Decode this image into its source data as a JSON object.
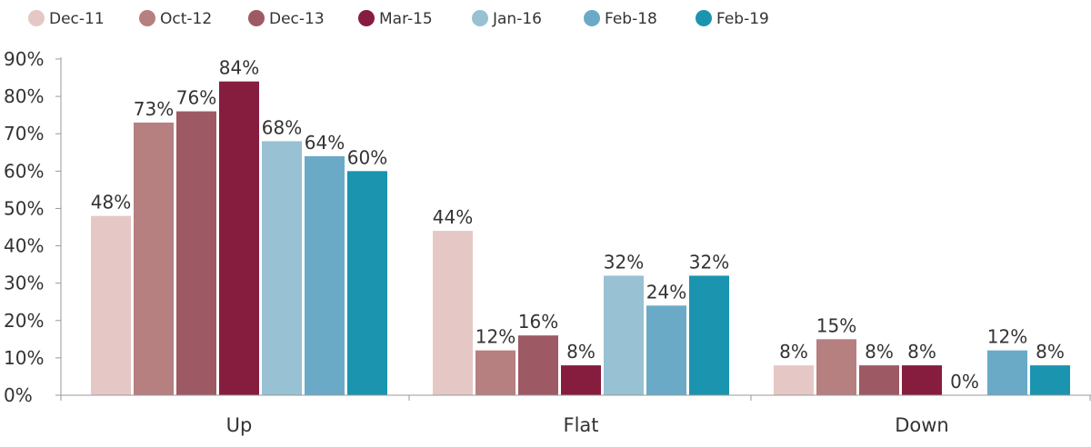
{
  "chart_data": {
    "type": "bar",
    "title": "",
    "xlabel": "",
    "ylabel": "",
    "categories": [
      "Up",
      "Flat",
      "Down"
    ],
    "ylim": [
      0,
      90
    ],
    "yticks": [
      0,
      10,
      20,
      30,
      40,
      50,
      60,
      70,
      80,
      90
    ],
    "ytick_labels": [
      "0%",
      "10%",
      "20%",
      "30%",
      "40%",
      "50%",
      "60%",
      "70%",
      "80%",
      "90%"
    ],
    "value_suffix": "%",
    "grid": false,
    "legend": "top-left",
    "series": [
      {
        "name": "Dec-11",
        "color": "#e5c8c6",
        "values": [
          48,
          44,
          8
        ]
      },
      {
        "name": "Oct-12",
        "color": "#b67f80",
        "values": [
          73,
          12,
          15
        ]
      },
      {
        "name": "Dec-13",
        "color": "#9e5a64",
        "values": [
          76,
          16,
          8
        ]
      },
      {
        "name": "Mar-15",
        "color": "#861d3f",
        "values": [
          84,
          8,
          8
        ]
      },
      {
        "name": "Jan-16",
        "color": "#98c1d3",
        "values": [
          68,
          32,
          0
        ]
      },
      {
        "name": "Feb-18",
        "color": "#6aaac7",
        "values": [
          64,
          24,
          12
        ]
      },
      {
        "name": "Feb-19",
        "color": "#1b94b0",
        "values": [
          60,
          32,
          8
        ]
      }
    ]
  }
}
